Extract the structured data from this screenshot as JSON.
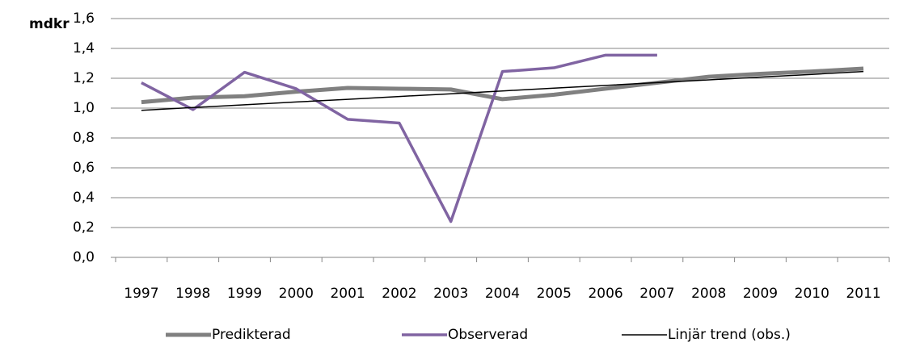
{
  "chart_data": {
    "type": "line",
    "y_label": "mdkr",
    "categories": [
      "1997",
      "1998",
      "1999",
      "2000",
      "2001",
      "2002",
      "2003",
      "2004",
      "2005",
      "2006",
      "2007",
      "2008",
      "2009",
      "2010",
      "2011"
    ],
    "series": [
      {
        "name": "Predikterad",
        "color": "#808080",
        "width": 5,
        "values": [
          1.04,
          1.07,
          1.08,
          1.11,
          1.135,
          1.13,
          1.125,
          1.06,
          1.09,
          1.13,
          1.17,
          1.21,
          1.23,
          1.245,
          1.265
        ]
      },
      {
        "name": "Observerad",
        "color": "#8064a2",
        "width": 3.5,
        "values": [
          1.17,
          0.99,
          1.24,
          1.13,
          0.925,
          0.9,
          0.24,
          1.245,
          1.27,
          1.355,
          1.355,
          null,
          null,
          null,
          null
        ]
      },
      {
        "name": "Linjär trend (obs.)",
        "color": "#000000",
        "width": 1.5,
        "values": [
          0.985,
          1.004,
          1.022,
          1.041,
          1.059,
          1.078,
          1.096,
          1.115,
          1.134,
          1.152,
          1.171,
          1.189,
          1.208,
          1.226,
          1.245
        ]
      }
    ],
    "ylim": [
      0,
      1.6
    ],
    "yticks": [
      {
        "value": 0,
        "label": "0,0"
      },
      {
        "value": 0.2,
        "label": "0,2"
      },
      {
        "value": 0.4,
        "label": "0,4"
      },
      {
        "value": 0.6,
        "label": "0,6"
      },
      {
        "value": 0.8,
        "label": "0,8"
      },
      {
        "value": 1.0,
        "label": "1,0"
      },
      {
        "value": 1.2,
        "label": "1,2"
      },
      {
        "value": 1.4,
        "label": "1,4"
      },
      {
        "value": 1.6,
        "label": "1,6"
      }
    ],
    "grid": true,
    "legend": "bottom"
  }
}
